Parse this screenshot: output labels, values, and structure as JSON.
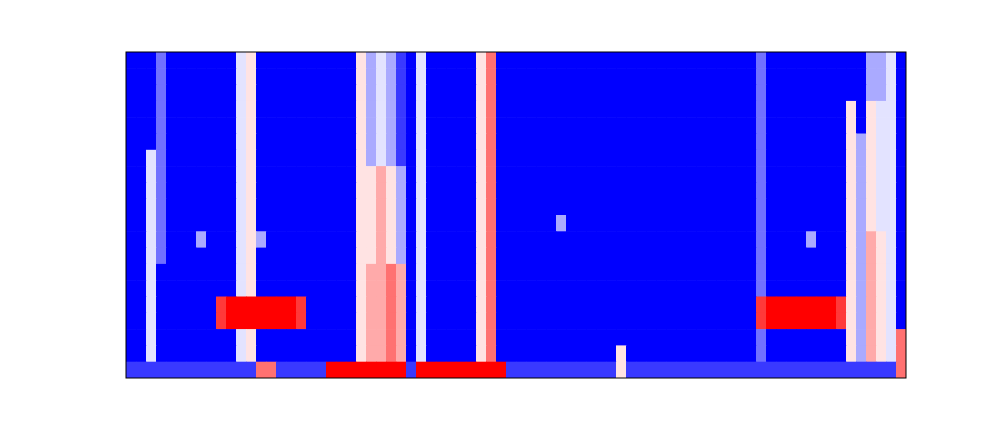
{
  "chart_data": {
    "type": "heatmap",
    "zlim": [
      0,
      9
    ],
    "cells": [
      [
        0,
        0,
        0,
        2,
        0,
        0,
        0,
        0,
        0,
        0,
        0,
        4,
        5,
        0,
        0,
        0,
        0,
        0,
        0,
        0,
        0,
        0,
        0,
        5,
        3,
        4,
        3,
        1,
        0,
        4,
        0,
        0,
        0,
        0,
        0,
        5,
        7,
        0,
        0,
        0,
        0,
        0,
        0,
        0,
        0,
        0,
        0,
        0,
        0,
        0,
        0,
        0,
        0,
        0,
        0,
        0,
        0,
        0,
        0,
        0,
        0,
        0,
        0,
        2,
        0,
        0,
        0,
        0,
        0,
        0,
        0,
        0,
        0,
        0,
        3,
        3,
        4,
        0
      ],
      [
        0,
        0,
        0,
        2,
        0,
        0,
        0,
        0,
        0,
        0,
        0,
        4,
        5,
        0,
        0,
        0,
        0,
        0,
        0,
        0,
        0,
        0,
        0,
        5,
        3,
        4,
        3,
        1,
        0,
        4,
        0,
        0,
        0,
        0,
        0,
        5,
        7,
        0,
        0,
        0,
        0,
        0,
        0,
        0,
        0,
        0,
        0,
        0,
        0,
        0,
        0,
        0,
        0,
        0,
        0,
        0,
        0,
        0,
        0,
        0,
        0,
        0,
        0,
        2,
        0,
        0,
        0,
        0,
        0,
        0,
        0,
        0,
        0,
        0,
        3,
        3,
        4,
        0
      ],
      [
        0,
        0,
        0,
        2,
        0,
        0,
        0,
        0,
        0,
        0,
        0,
        4,
        5,
        0,
        0,
        0,
        0,
        0,
        0,
        0,
        0,
        0,
        0,
        5,
        3,
        4,
        3,
        1,
        0,
        4,
        0,
        0,
        0,
        0,
        0,
        5,
        7,
        0,
        0,
        0,
        0,
        0,
        0,
        0,
        0,
        0,
        0,
        0,
        0,
        0,
        0,
        0,
        0,
        0,
        0,
        0,
        0,
        0,
        0,
        0,
        0,
        0,
        0,
        2,
        0,
        0,
        0,
        0,
        0,
        0,
        0,
        0,
        0,
        0,
        3,
        3,
        4,
        0
      ],
      [
        0,
        0,
        0,
        2,
        0,
        0,
        0,
        0,
        0,
        0,
        0,
        4,
        5,
        0,
        0,
        0,
        0,
        0,
        0,
        0,
        0,
        0,
        0,
        5,
        3,
        4,
        3,
        1,
        0,
        4,
        0,
        0,
        0,
        0,
        0,
        5,
        7,
        0,
        0,
        0,
        0,
        0,
        0,
        0,
        0,
        0,
        0,
        0,
        0,
        0,
        0,
        0,
        0,
        0,
        0,
        0,
        0,
        0,
        0,
        0,
        0,
        0,
        0,
        2,
        0,
        0,
        0,
        0,
        0,
        0,
        0,
        0,
        5,
        0,
        5,
        4,
        4,
        0
      ],
      [
        0,
        0,
        0,
        2,
        0,
        0,
        0,
        0,
        0,
        0,
        0,
        4,
        5,
        0,
        0,
        0,
        0,
        0,
        0,
        0,
        0,
        0,
        0,
        5,
        3,
        4,
        3,
        1,
        0,
        4,
        0,
        0,
        0,
        0,
        0,
        5,
        7,
        0,
        0,
        0,
        0,
        0,
        0,
        0,
        0,
        0,
        0,
        0,
        0,
        0,
        0,
        0,
        0,
        0,
        0,
        0,
        0,
        0,
        0,
        0,
        0,
        0,
        0,
        2,
        0,
        0,
        0,
        0,
        0,
        0,
        0,
        0,
        5,
        0,
        5,
        4,
        4,
        0
      ],
      [
        0,
        0,
        0,
        2,
        0,
        0,
        0,
        0,
        0,
        0,
        0,
        4,
        5,
        0,
        0,
        0,
        0,
        0,
        0,
        0,
        0,
        0,
        0,
        5,
        3,
        4,
        3,
        1,
        0,
        4,
        0,
        0,
        0,
        0,
        0,
        5,
        7,
        0,
        0,
        0,
        0,
        0,
        0,
        0,
        0,
        0,
        0,
        0,
        0,
        0,
        0,
        0,
        0,
        0,
        0,
        0,
        0,
        0,
        0,
        0,
        0,
        0,
        0,
        2,
        0,
        0,
        0,
        0,
        0,
        0,
        0,
        0,
        5,
        3,
        5,
        4,
        4,
        0
      ],
      [
        0,
        0,
        4,
        2,
        0,
        0,
        0,
        0,
        0,
        0,
        0,
        4,
        5,
        0,
        0,
        0,
        0,
        0,
        0,
        0,
        0,
        0,
        0,
        5,
        3,
        4,
        3,
        1,
        0,
        4,
        0,
        0,
        0,
        0,
        0,
        5,
        7,
        0,
        0,
        0,
        0,
        0,
        0,
        0,
        0,
        0,
        0,
        0,
        0,
        0,
        0,
        0,
        0,
        0,
        0,
        0,
        0,
        0,
        0,
        0,
        0,
        0,
        0,
        2,
        0,
        0,
        0,
        0,
        0,
        0,
        0,
        0,
        5,
        3,
        5,
        4,
        4,
        0
      ],
      [
        0,
        0,
        4,
        2,
        0,
        0,
        0,
        0,
        0,
        0,
        0,
        4,
        5,
        0,
        0,
        0,
        0,
        0,
        0,
        0,
        0,
        0,
        0,
        5,
        5,
        6,
        5,
        3,
        0,
        4,
        0,
        0,
        0,
        0,
        0,
        5,
        7,
        0,
        0,
        0,
        0,
        0,
        0,
        0,
        0,
        0,
        0,
        0,
        0,
        0,
        0,
        0,
        0,
        0,
        0,
        0,
        0,
        0,
        0,
        0,
        0,
        0,
        0,
        2,
        0,
        0,
        0,
        0,
        0,
        0,
        0,
        0,
        5,
        3,
        5,
        4,
        4,
        0
      ],
      [
        0,
        0,
        4,
        2,
        0,
        0,
        0,
        0,
        0,
        0,
        0,
        4,
        5,
        0,
        0,
        0,
        0,
        0,
        0,
        0,
        0,
        0,
        0,
        5,
        5,
        6,
        5,
        3,
        0,
        4,
        0,
        0,
        0,
        0,
        0,
        5,
        7,
        0,
        0,
        0,
        0,
        0,
        0,
        0,
        0,
        0,
        0,
        0,
        0,
        0,
        0,
        0,
        0,
        0,
        0,
        0,
        0,
        0,
        0,
        0,
        0,
        0,
        0,
        2,
        0,
        0,
        0,
        0,
        0,
        0,
        0,
        0,
        5,
        3,
        5,
        4,
        4,
        0
      ],
      [
        0,
        0,
        4,
        2,
        0,
        0,
        0,
        0,
        0,
        0,
        0,
        4,
        5,
        0,
        0,
        0,
        0,
        0,
        0,
        0,
        0,
        0,
        0,
        5,
        5,
        6,
        5,
        3,
        0,
        4,
        0,
        0,
        0,
        0,
        0,
        5,
        7,
        0,
        0,
        0,
        0,
        0,
        0,
        0,
        0,
        0,
        0,
        0,
        0,
        0,
        0,
        0,
        0,
        0,
        0,
        0,
        0,
        0,
        0,
        0,
        0,
        0,
        0,
        2,
        0,
        0,
        0,
        0,
        0,
        0,
        0,
        0,
        5,
        3,
        5,
        4,
        4,
        0
      ],
      [
        0,
        0,
        4,
        2,
        0,
        0,
        0,
        0,
        0,
        0,
        0,
        4,
        5,
        0,
        0,
        0,
        0,
        0,
        0,
        0,
        0,
        0,
        0,
        5,
        5,
        6,
        5,
        3,
        0,
        4,
        0,
        0,
        0,
        0,
        0,
        5,
        7,
        0,
        0,
        0,
        0,
        0,
        0,
        3,
        0,
        0,
        0,
        0,
        0,
        0,
        0,
        0,
        0,
        0,
        0,
        0,
        0,
        0,
        0,
        0,
        0,
        0,
        0,
        2,
        0,
        0,
        0,
        0,
        0,
        0,
        0,
        0,
        5,
        3,
        5,
        4,
        4,
        0
      ],
      [
        0,
        0,
        4,
        2,
        0,
        0,
        0,
        3,
        0,
        0,
        0,
        4,
        5,
        3,
        0,
        0,
        0,
        0,
        0,
        0,
        0,
        0,
        0,
        5,
        5,
        6,
        5,
        3,
        0,
        4,
        0,
        0,
        0,
        0,
        0,
        5,
        7,
        0,
        0,
        0,
        0,
        0,
        0,
        0,
        0,
        0,
        0,
        0,
        0,
        0,
        0,
        0,
        0,
        0,
        0,
        0,
        0,
        0,
        0,
        0,
        0,
        0,
        0,
        2,
        0,
        0,
        0,
        0,
        3,
        0,
        0,
        0,
        5,
        3,
        6,
        5,
        4,
        0
      ],
      [
        0,
        0,
        4,
        2,
        0,
        0,
        0,
        0,
        0,
        0,
        0,
        4,
        5,
        0,
        0,
        0,
        0,
        0,
        0,
        0,
        0,
        0,
        0,
        5,
        5,
        6,
        5,
        3,
        0,
        4,
        0,
        0,
        0,
        0,
        0,
        5,
        7,
        0,
        0,
        0,
        0,
        0,
        0,
        0,
        0,
        0,
        0,
        0,
        0,
        0,
        0,
        0,
        0,
        0,
        0,
        0,
        0,
        0,
        0,
        0,
        0,
        0,
        0,
        2,
        0,
        0,
        0,
        0,
        0,
        0,
        0,
        0,
        5,
        3,
        6,
        5,
        4,
        0
      ],
      [
        0,
        0,
        4,
        0,
        0,
        0,
        0,
        0,
        0,
        0,
        0,
        4,
        5,
        0,
        0,
        0,
        0,
        0,
        0,
        0,
        0,
        0,
        0,
        5,
        6,
        6,
        7,
        6,
        0,
        4,
        0,
        0,
        0,
        0,
        0,
        5,
        7,
        0,
        0,
        0,
        0,
        0,
        0,
        0,
        0,
        0,
        0,
        0,
        0,
        0,
        0,
        0,
        0,
        0,
        0,
        0,
        0,
        0,
        0,
        0,
        0,
        0,
        0,
        2,
        0,
        0,
        0,
        0,
        0,
        0,
        0,
        0,
        5,
        3,
        6,
        5,
        4,
        0
      ],
      [
        0,
        0,
        4,
        0,
        0,
        0,
        0,
        0,
        0,
        0,
        0,
        4,
        5,
        0,
        0,
        0,
        0,
        0,
        0,
        0,
        0,
        0,
        0,
        5,
        6,
        6,
        7,
        6,
        0,
        4,
        0,
        0,
        0,
        0,
        0,
        5,
        7,
        0,
        0,
        0,
        0,
        0,
        0,
        0,
        0,
        0,
        0,
        0,
        0,
        0,
        0,
        0,
        0,
        0,
        0,
        0,
        0,
        0,
        0,
        0,
        0,
        0,
        0,
        2,
        0,
        0,
        0,
        0,
        0,
        0,
        0,
        0,
        5,
        3,
        6,
        5,
        4,
        0
      ],
      [
        0,
        0,
        4,
        0,
        0,
        0,
        0,
        0,
        0,
        8,
        9,
        9,
        9,
        9,
        9,
        9,
        9,
        8,
        0,
        0,
        0,
        0,
        0,
        5,
        6,
        6,
        7,
        6,
        0,
        4,
        0,
        0,
        0,
        0,
        0,
        5,
        7,
        0,
        0,
        0,
        0,
        0,
        0,
        0,
        0,
        0,
        0,
        0,
        0,
        0,
        0,
        0,
        0,
        0,
        0,
        0,
        0,
        0,
        0,
        0,
        0,
        0,
        0,
        8,
        9,
        9,
        9,
        9,
        9,
        9,
        9,
        8,
        5,
        3,
        6,
        5,
        4,
        0
      ],
      [
        0,
        0,
        4,
        0,
        0,
        0,
        0,
        0,
        0,
        8,
        9,
        9,
        9,
        9,
        9,
        9,
        9,
        8,
        0,
        0,
        0,
        0,
        0,
        5,
        6,
        6,
        7,
        6,
        0,
        4,
        0,
        0,
        0,
        0,
        0,
        5,
        7,
        0,
        0,
        0,
        0,
        0,
        0,
        0,
        0,
        0,
        0,
        0,
        0,
        0,
        0,
        0,
        0,
        0,
        0,
        0,
        0,
        0,
        0,
        0,
        0,
        0,
        0,
        8,
        9,
        9,
        9,
        9,
        9,
        9,
        9,
        8,
        5,
        3,
        6,
        5,
        4,
        0
      ],
      [
        0,
        0,
        4,
        0,
        0,
        0,
        0,
        0,
        0,
        0,
        0,
        4,
        5,
        0,
        0,
        0,
        0,
        0,
        0,
        0,
        0,
        0,
        0,
        5,
        6,
        6,
        7,
        6,
        0,
        4,
        0,
        0,
        0,
        0,
        0,
        5,
        7,
        0,
        0,
        0,
        0,
        0,
        0,
        0,
        0,
        0,
        0,
        0,
        0,
        0,
        0,
        0,
        0,
        0,
        0,
        0,
        0,
        0,
        0,
        0,
        0,
        0,
        0,
        2,
        0,
        0,
        0,
        0,
        0,
        0,
        0,
        0,
        5,
        3,
        6,
        5,
        4,
        7
      ],
      [
        0,
        0,
        4,
        0,
        0,
        0,
        0,
        0,
        0,
        0,
        0,
        4,
        5,
        0,
        0,
        0,
        0,
        0,
        0,
        0,
        0,
        0,
        0,
        5,
        6,
        6,
        7,
        6,
        0,
        4,
        0,
        0,
        0,
        0,
        0,
        5,
        7,
        0,
        0,
        0,
        0,
        0,
        0,
        0,
        0,
        0,
        0,
        0,
        0,
        5,
        0,
        0,
        0,
        0,
        0,
        0,
        0,
        0,
        0,
        0,
        0,
        0,
        0,
        2,
        0,
        0,
        0,
        0,
        0,
        0,
        0,
        0,
        5,
        3,
        6,
        5,
        4,
        7
      ],
      [
        1,
        1,
        1,
        1,
        1,
        1,
        1,
        1,
        1,
        1,
        1,
        1,
        1,
        7,
        7,
        1,
        1,
        1,
        1,
        1,
        9,
        9,
        9,
        9,
        9,
        9,
        9,
        9,
        1,
        9,
        9,
        9,
        9,
        9,
        9,
        9,
        9,
        9,
        1,
        1,
        1,
        1,
        1,
        1,
        1,
        1,
        1,
        1,
        1,
        5,
        1,
        1,
        1,
        1,
        1,
        1,
        1,
        1,
        1,
        1,
        1,
        1,
        1,
        1,
        1,
        1,
        1,
        1,
        1,
        1,
        1,
        1,
        1,
        1,
        1,
        1,
        1,
        7
      ]
    ]
  }
}
